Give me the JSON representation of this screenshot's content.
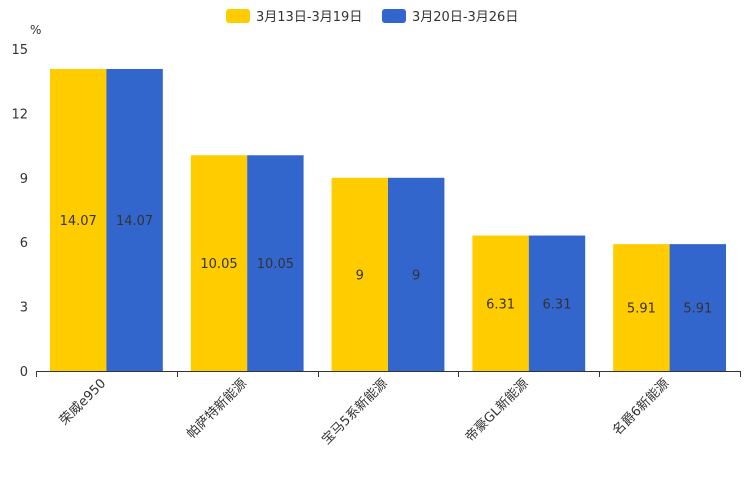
{
  "chart_data": {
    "type": "bar",
    "unit_label": "%",
    "categories": [
      "荣威e950",
      "帕萨特新能源",
      "宝马5系新能源",
      "帝豪GL新能源",
      "名爵6新能源"
    ],
    "series": [
      {
        "name": "3月13日-3月19日",
        "color": "#ffcc00",
        "values": [
          14.07,
          10.05,
          9,
          6.31,
          5.91
        ]
      },
      {
        "name": "3月20日-3月26日",
        "color": "#3366cc",
        "values": [
          14.07,
          10.05,
          9,
          6.31,
          5.91
        ]
      }
    ],
    "yticks": [
      0,
      3,
      6,
      9,
      12,
      15
    ],
    "ylim": [
      0,
      15
    ],
    "legend_position": "top-center",
    "grid": false
  }
}
